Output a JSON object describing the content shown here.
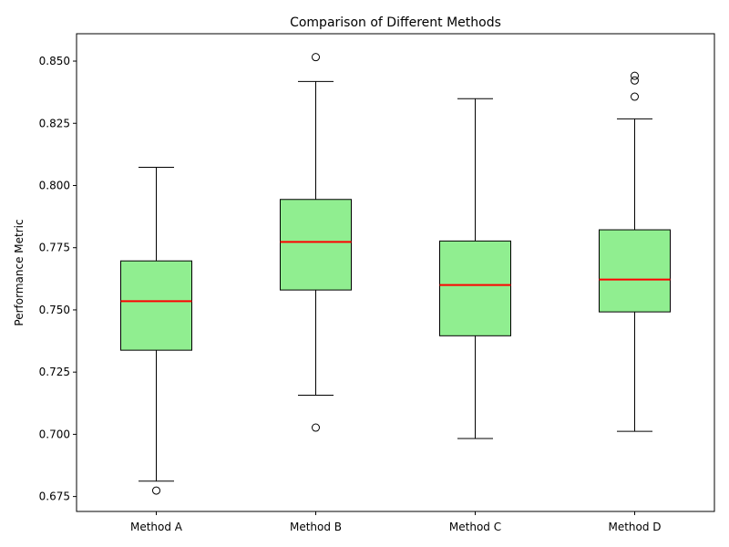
{
  "chart_data": {
    "type": "box",
    "title": "Comparison of Different Methods",
    "xlabel": "",
    "ylabel": "Performance Metric",
    "categories": [
      "Method A",
      "Method B",
      "Method C",
      "Method D"
    ],
    "ylim": [
      0.669,
      0.861
    ],
    "yticks": [
      0.675,
      0.7,
      0.725,
      0.75,
      0.775,
      0.8,
      0.825,
      0.85
    ],
    "ytick_labels": [
      "0.675",
      "0.700",
      "0.725",
      "0.750",
      "0.775",
      "0.800",
      "0.825",
      "0.850"
    ],
    "series": [
      {
        "category": "Method A",
        "whisker_low": 0.6812,
        "q1": 0.7338,
        "median": 0.7535,
        "q3": 0.7697,
        "whisker_high": 0.8073,
        "outliers": [
          0.6774
        ]
      },
      {
        "category": "Method B",
        "whisker_low": 0.7157,
        "q1": 0.758,
        "median": 0.7773,
        "q3": 0.7944,
        "whisker_high": 0.8418,
        "outliers": [
          0.7027,
          0.8516
        ]
      },
      {
        "category": "Method C",
        "whisker_low": 0.6983,
        "q1": 0.7396,
        "median": 0.76,
        "q3": 0.7777,
        "whisker_high": 0.8349,
        "outliers": []
      },
      {
        "category": "Method D",
        "whisker_low": 0.7012,
        "q1": 0.7492,
        "median": 0.7622,
        "q3": 0.7822,
        "whisker_high": 0.8268,
        "outliers": [
          0.8357,
          0.8422,
          0.8441
        ]
      }
    ],
    "box_color": "#90ee90",
    "median_color": "#ff0000",
    "edge_color": "#000000",
    "grid": false,
    "legend": "none"
  }
}
